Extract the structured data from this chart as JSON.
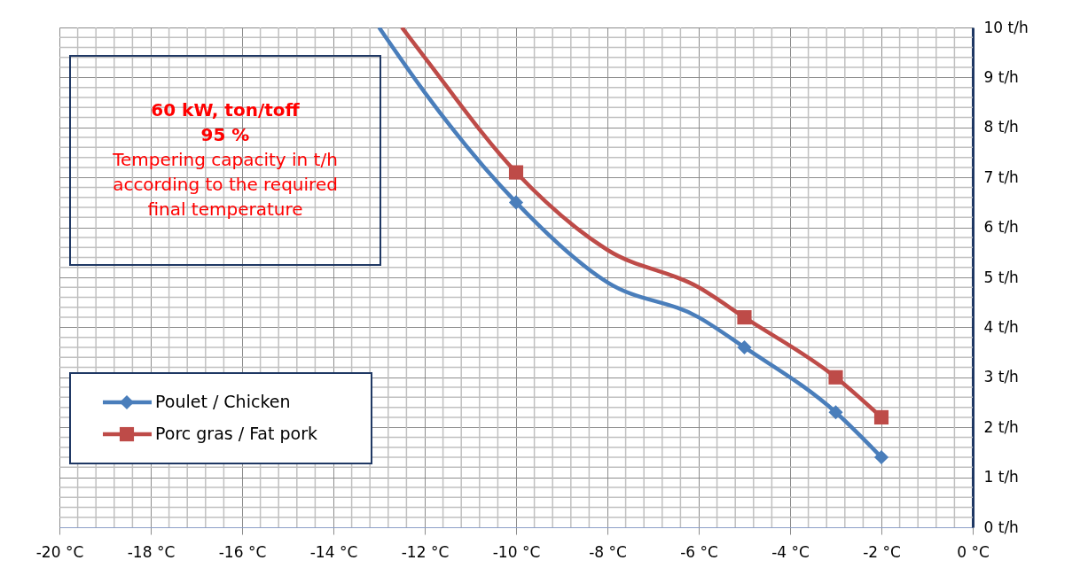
{
  "chart_data": {
    "type": "line",
    "annotations": [
      "60 kW,  ton/toff 95 %",
      "Tempering capacity in t/h according to the required final temperature"
    ],
    "xlim": [
      -20,
      0
    ],
    "xticks": [
      {
        "value": -20,
        "label": "-20 °C"
      },
      {
        "value": -18,
        "label": "-18 °C"
      },
      {
        "value": -16,
        "label": "-16 °C"
      },
      {
        "value": -14,
        "label": "-14 °C"
      },
      {
        "value": -12,
        "label": "-12 °C"
      },
      {
        "value": -10,
        "label": "-10 °C"
      },
      {
        "value": -8,
        "label": "-8 °C"
      },
      {
        "value": -6,
        "label": "-6 °C"
      },
      {
        "value": -4,
        "label": "-4 °C"
      },
      {
        "value": -2,
        "label": "-2 °C"
      },
      {
        "value": 0,
        "label": "0 °C"
      }
    ],
    "ylim": [
      0,
      10
    ],
    "yticks": [
      {
        "value": 0,
        "label": "0 t/h"
      },
      {
        "value": 1,
        "label": "1 t/h"
      },
      {
        "value": 2,
        "label": "2 t/h"
      },
      {
        "value": 3,
        "label": "3 t/h"
      },
      {
        "value": 4,
        "label": "4 t/h"
      },
      {
        "value": 5,
        "label": "5 t/h"
      },
      {
        "value": 6,
        "label": "6 t/h"
      },
      {
        "value": 7,
        "label": "7 t/h"
      },
      {
        "value": 8,
        "label": "8 t/h"
      },
      {
        "value": 9,
        "label": "9 t/h"
      },
      {
        "value": 10,
        "label": "10 t/h"
      }
    ],
    "grid": true,
    "legend": "bottom left",
    "series": [
      {
        "type": "line",
        "marker": "none",
        "color": "#4a7ebb",
        "x": [
          -13.0,
          -12,
          -10,
          -8,
          -6,
          -5,
          -3,
          -2
        ],
        "values": [
          10,
          8.7,
          6.5,
          4.9,
          4.2,
          3.6,
          2.3,
          1.4
        ]
      },
      {
        "type": "line",
        "marker": "none",
        "color": "#be4b48",
        "x": [
          -12.5,
          -12,
          -10,
          -8,
          -6,
          -5,
          -3,
          -2
        ],
        "values": [
          10,
          9.4,
          7.1,
          5.55,
          4.8,
          4.2,
          3.0,
          2.2
        ]
      },
      {
        "type": "scatter",
        "marker": "diamond",
        "name": "Poulet / Chicken",
        "color": "#4a7ebb",
        "x": [
          -10,
          -5,
          -3,
          -2
        ],
        "values": [
          6.5,
          3.6,
          2.3,
          1.4
        ]
      },
      {
        "type": "scatter",
        "marker": "square",
        "name": "Porc gras / Fat pork",
        "color": "#be4b48",
        "x": [
          -10,
          -5,
          -3,
          -2
        ],
        "values": [
          7.1,
          4.2,
          3.0,
          2.2
        ]
      }
    ]
  }
}
